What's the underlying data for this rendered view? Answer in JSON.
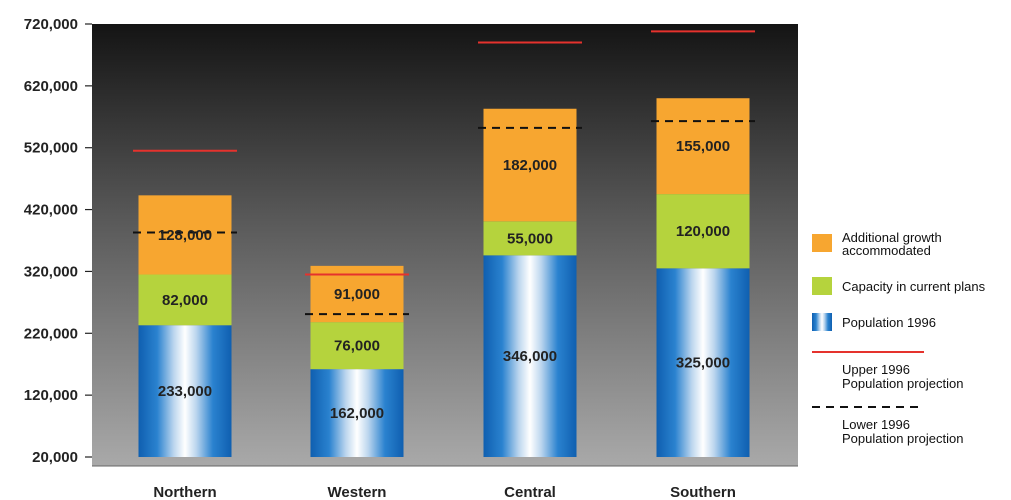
{
  "chart_data": {
    "type": "bar",
    "stacked": true,
    "categories": [
      "Northern",
      "Western",
      "Central",
      "Southern"
    ],
    "series": [
      {
        "name": "Population 1996",
        "values": [
          233000,
          162000,
          346000,
          325000
        ],
        "color": "#1f6fbf",
        "labels": [
          "233,000",
          "162,000",
          "346,000",
          "325,000"
        ]
      },
      {
        "name": "Capacity in current plans",
        "values": [
          82000,
          76000,
          55000,
          120000
        ],
        "color": "#b5d33d",
        "labels": [
          "82,000",
          "76,000",
          "55,000",
          "120,000"
        ]
      },
      {
        "name": "Additional growth accommodated",
        "values": [
          128000,
          91000,
          182000,
          155000
        ],
        "color": "#f7a630",
        "labels": [
          "128,000",
          "91,000",
          "182,000",
          "155,000"
        ]
      }
    ],
    "projections": [
      {
        "name": "Upper 1996 Population projection",
        "values": [
          515000,
          315000,
          690000,
          708000
        ],
        "color": "#e5322d",
        "style": "solid"
      },
      {
        "name": "Lower 1996 Population projection",
        "values": [
          383000,
          251000,
          552000,
          563000
        ],
        "color": "#111111",
        "style": "dashed"
      }
    ],
    "ylim": [
      20000,
      720000
    ],
    "yticks": [
      20000,
      120000,
      220000,
      320000,
      420000,
      520000,
      620000,
      720000
    ],
    "ytick_labels": [
      "20,000",
      "120,000",
      "220,000",
      "320,000",
      "420,000",
      "520,000",
      "620,000",
      "720,000"
    ],
    "legend": {
      "position": "right",
      "items": [
        {
          "lines": [
            "Additional growth",
            "accommodated"
          ],
          "swatch": "#f7a630",
          "kind": "box"
        },
        {
          "lines": [
            "Capacity in current plans"
          ],
          "swatch": "#b5d33d",
          "kind": "box"
        },
        {
          "lines": [
            "Population 1996"
          ],
          "swatch": "#1f6fbf",
          "kind": "gradient"
        },
        {
          "lines": [
            "Upper 1996",
            "Population projection"
          ],
          "swatch": "#e5322d",
          "kind": "line"
        },
        {
          "lines": [
            "Lower 1996",
            "Population projection"
          ],
          "swatch": "#111111",
          "kind": "dashed"
        }
      ]
    },
    "grid": false
  }
}
